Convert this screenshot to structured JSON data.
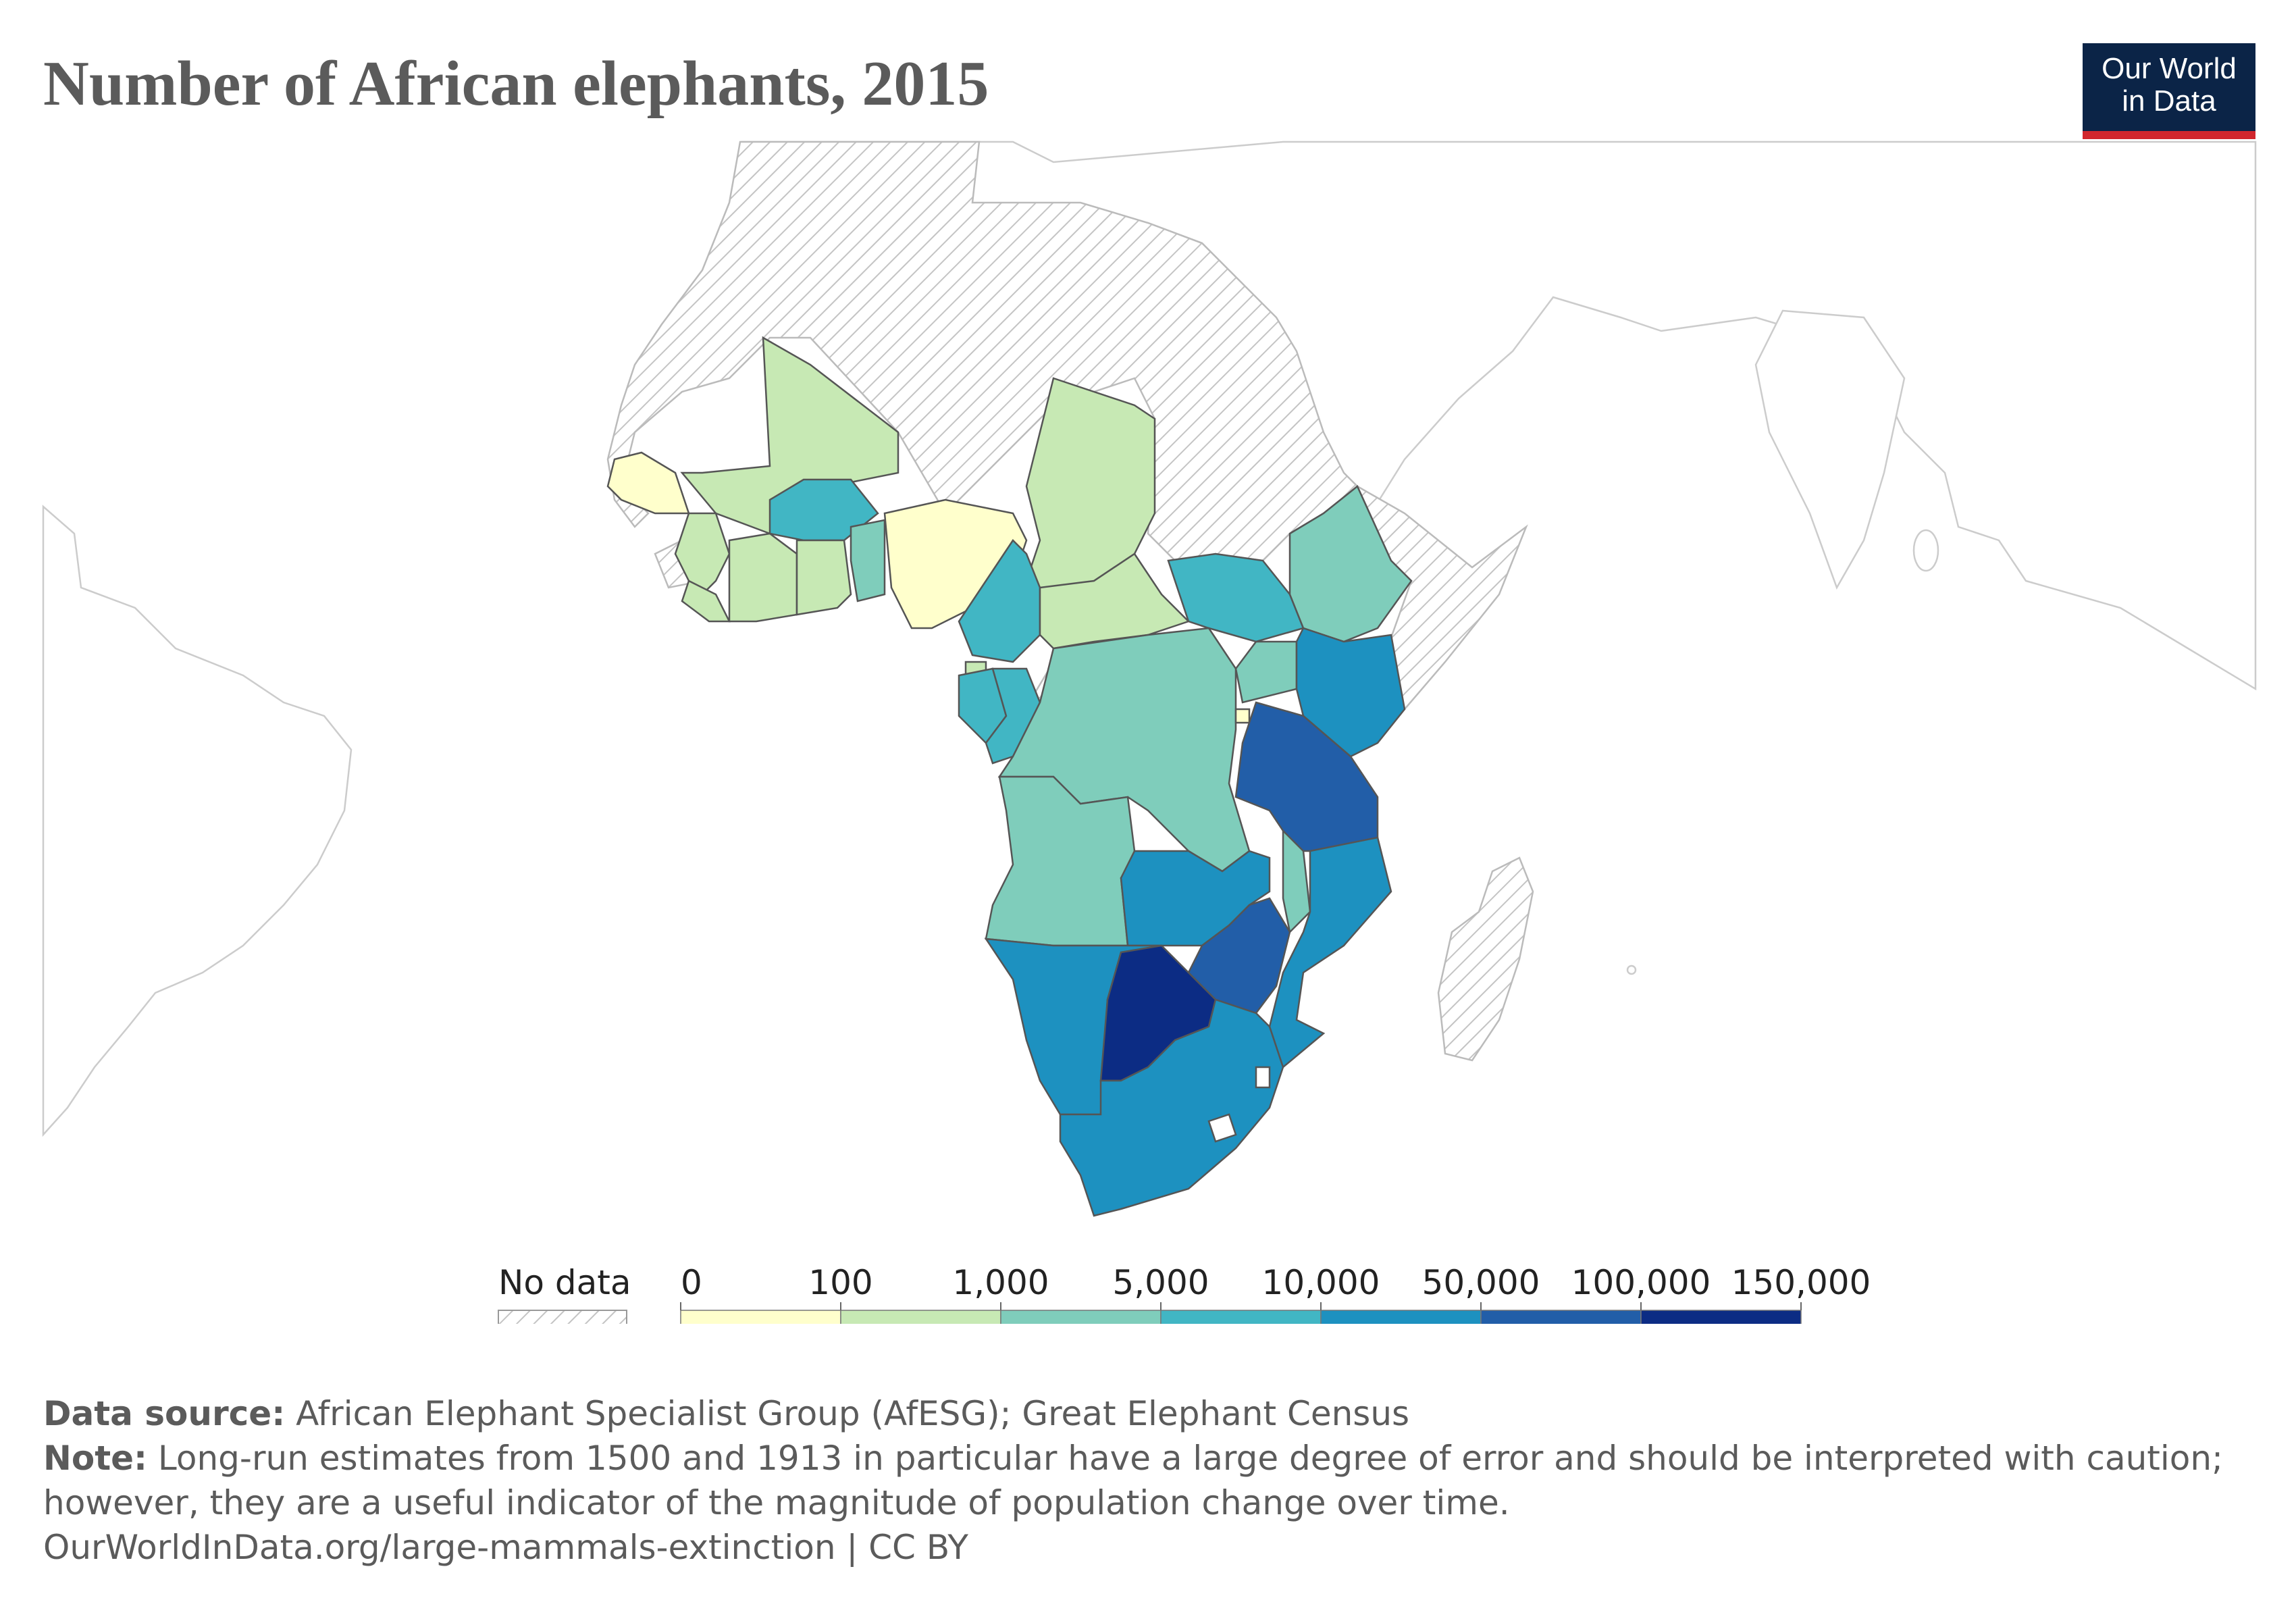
{
  "title": "Number of African elephants, 2015",
  "logo": {
    "line1": "Our World",
    "line2": "in Data"
  },
  "legend": {
    "no_data_label": "No data",
    "thresholds": [
      "0",
      "100",
      "1,000",
      "5,000",
      "10,000",
      "50,000",
      "100,000",
      "150,000"
    ],
    "colors": [
      "#ffffcc",
      "#c7e9b4",
      "#7fcdbb",
      "#41b6c4",
      "#1d91c0",
      "#225ea8",
      "#0c2c84"
    ]
  },
  "map_data": {
    "Senegal": "0–100",
    "Guinea-Bissau": "0–100",
    "Nigeria": "0–100",
    "Rwanda": "0–100",
    "Mali": "100–1,000",
    "Guinea": "100–1,000",
    "Sierra Leone": "100–1,000",
    "Liberia": "100–1,000",
    "Côte d'Ivoire": "100–1,000",
    "Ghana": "100–1,000",
    "Chad": "100–1,000",
    "Central African Republic": "100–1,000",
    "Equatorial Guinea": "100–1,000",
    "Togo": "1,000–5,000",
    "Benin": "1,000–5,000",
    "Democratic Republic of Congo": "1,000–5,000",
    "Uganda": "1,000–5,000",
    "Angola": "1,000–5,000",
    "Ethiopia": "1,000–5,000",
    "Malawi": "1,000–5,000",
    "Burkina Faso": "5,000–10,000",
    "Cameroon": "5,000–10,000",
    "Gabon": "5,000–10,000",
    "Congo": "5,000–10,000",
    "South Sudan": "5,000–10,000",
    "Kenya": "10,000–50,000",
    "Mozambique": "10,000–50,000",
    "Zambia": "10,000–50,000",
    "Namibia": "10,000–50,000",
    "South Africa": "10,000–50,000",
    "Tanzania": "50,000–100,000",
    "Zimbabwe": "50,000–100,000",
    "Botswana": "100,000–150,000"
  },
  "footer": {
    "source_label": "Data source:",
    "source_text": " African Elephant Specialist Group (AfESG); Great Elephant Census",
    "note_label": "Note:",
    "note_text": " Long-run estimates from 1500 and 1913 in particular have a large degree of error and should be interpreted with caution;",
    "note_text2": "however, they are a useful indicator of the magnitude of population change over time.",
    "url": "OurWorldInData.org/large-mammals-extinction | CC BY"
  }
}
